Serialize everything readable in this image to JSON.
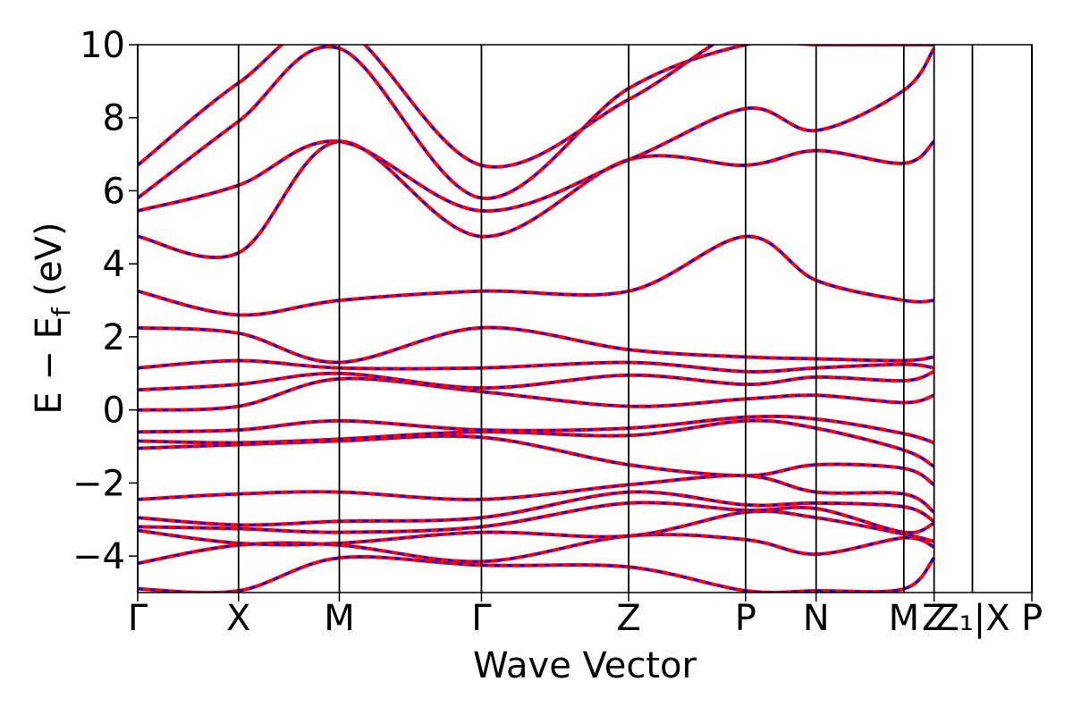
{
  "chart_data": {
    "type": "line",
    "xlabel": "Wave Vector",
    "ylabel_main": "E − E",
    "ylabel_sub": "f",
    "ylabel_unit": " (eV)",
    "ylim": [
      -5,
      10
    ],
    "yticks": [
      {
        "value": -4,
        "label": "−4"
      },
      {
        "value": -2,
        "label": "−2"
      },
      {
        "value": 0,
        "label": "0"
      },
      {
        "value": 2,
        "label": "2"
      },
      {
        "value": 4,
        "label": "4"
      },
      {
        "value": 6,
        "label": "6"
      },
      {
        "value": 8,
        "label": "8"
      },
      {
        "value": 10,
        "label": "10"
      }
    ],
    "kpath_labels": [
      "Γ",
      "X",
      "M",
      "Γ",
      "Z",
      "P",
      "N",
      "Z",
      "M",
      "X",
      "P"
    ],
    "kpath_positions": [
      0,
      1,
      2,
      3.41,
      4.87,
      6.03,
      6.73,
      7.6,
      7.9,
      8.87,
      8.87
    ],
    "xlim": [
      0,
      8.87
    ],
    "overlap_labels": [
      {
        "text": "Z₁|X",
        "at": 8.28
      },
      {
        "text": "M",
        "at": 7.6
      }
    ],
    "series_colors": {
      "solid": "#ff0000",
      "dashed": "#0000ff"
    },
    "bands": [
      {
        "x": [
          0,
          1,
          2,
          3.41,
          4.87,
          6.03,
          6.73,
          7.6,
          7.9
        ],
        "y": [
          -4.9,
          -4.95,
          -4.05,
          -4.25,
          -4.3,
          -4.95,
          -4.95,
          -4.9,
          -4.05
        ]
      },
      {
        "x": [
          0,
          1,
          2,
          3.41,
          4.87,
          6.03,
          6.73,
          7.6,
          7.9
        ],
        "y": [
          -4.2,
          -3.7,
          -3.7,
          -4.15,
          -3.45,
          -3.55,
          -3.95,
          -3.5,
          -3.75
        ]
      },
      {
        "x": [
          0,
          1,
          2,
          3.41,
          4.87,
          6.03,
          6.73,
          7.6,
          7.9
        ],
        "y": [
          -3.3,
          -3.65,
          -3.65,
          -3.35,
          -3.45,
          -2.8,
          -2.95,
          -3.4,
          -3.6
        ]
      },
      {
        "x": [
          0,
          1,
          2,
          3.41,
          4.87,
          6.03,
          6.73,
          7.6,
          7.9
        ],
        "y": [
          -3.2,
          -3.25,
          -3.35,
          -3.2,
          -2.55,
          -2.75,
          -2.7,
          -3.35,
          -3.1
        ]
      },
      {
        "x": [
          0,
          1,
          2,
          3.41,
          4.87,
          6.03,
          6.73,
          7.6,
          7.9
        ],
        "y": [
          -2.95,
          -3.15,
          -3.05,
          -2.95,
          -2.25,
          -2.6,
          -2.55,
          -2.65,
          -3.05
        ]
      },
      {
        "x": [
          0,
          1,
          2,
          3.41,
          4.87,
          6.03,
          6.73,
          7.6,
          7.9
        ],
        "y": [
          -2.45,
          -2.3,
          -2.25,
          -2.45,
          -2.05,
          -1.8,
          -2.25,
          -2.3,
          -2.8
        ]
      },
      {
        "x": [
          0,
          1,
          2,
          3.41,
          4.87,
          6.03,
          6.73,
          7.6,
          7.9
        ],
        "y": [
          -1.05,
          -0.95,
          -0.85,
          -0.75,
          -1.5,
          -1.8,
          -1.5,
          -1.6,
          -2.05
        ]
      },
      {
        "x": [
          0,
          1,
          2,
          3.41,
          4.87,
          6.03,
          6.73,
          7.6,
          7.9
        ],
        "y": [
          -0.85,
          -0.9,
          -0.8,
          -0.6,
          -0.7,
          -0.3,
          -0.5,
          -1.1,
          -1.55
        ]
      },
      {
        "x": [
          0,
          1,
          2,
          3.41,
          4.87,
          6.03,
          6.73,
          7.6,
          7.9
        ],
        "y": [
          -0.6,
          -0.55,
          -0.3,
          -0.55,
          -0.5,
          -0.2,
          -0.25,
          -0.65,
          -0.9
        ]
      },
      {
        "x": [
          0,
          1,
          2,
          3.41,
          4.87,
          6.03,
          6.73,
          7.6,
          7.9
        ],
        "y": [
          0.0,
          0.1,
          0.85,
          0.5,
          0.1,
          0.3,
          0.4,
          0.2,
          0.4
        ]
      },
      {
        "x": [
          0,
          1,
          2,
          3.41,
          4.87,
          6.03,
          6.73,
          7.6,
          7.9
        ],
        "y": [
          0.55,
          0.7,
          1.0,
          0.6,
          0.95,
          0.7,
          0.9,
          0.8,
          1.05
        ]
      },
      {
        "x": [
          0,
          1,
          2,
          3.41,
          4.87,
          6.03,
          6.73,
          7.6,
          7.9
        ],
        "y": [
          1.15,
          1.35,
          1.15,
          1.15,
          1.3,
          1.05,
          1.15,
          1.25,
          1.15
        ]
      },
      {
        "x": [
          0,
          1,
          2,
          3.41,
          4.87,
          6.03,
          6.73,
          7.6,
          7.9
        ],
        "y": [
          2.25,
          2.1,
          1.3,
          2.25,
          1.65,
          1.45,
          1.4,
          1.35,
          1.45
        ]
      },
      {
        "x": [
          0,
          1,
          2,
          3.41,
          4.87,
          6.03,
          6.73,
          7.6,
          7.9
        ],
        "y": [
          3.25,
          2.6,
          3.0,
          3.25,
          3.25,
          4.75,
          3.55,
          3.0,
          3.0
        ]
      },
      {
        "x": [
          0,
          1,
          2,
          3.41,
          4.87,
          6.03,
          6.73,
          7.6,
          7.9
        ],
        "y": [
          4.75,
          4.3,
          7.35,
          4.75,
          6.85,
          6.7,
          7.1,
          6.75,
          7.35
        ]
      },
      {
        "x": [
          0,
          1,
          2,
          3.41,
          4.87,
          6.03,
          6.73,
          7.6,
          7.9
        ],
        "y": [
          5.45,
          6.15,
          7.35,
          5.45,
          6.85,
          8.25,
          7.65,
          8.75,
          9.9
        ]
      },
      {
        "x": [
          0,
          1,
          2,
          3.41,
          4.87,
          6.03,
          6.73,
          7.6,
          7.9
        ],
        "y": [
          5.8,
          7.9,
          9.9,
          5.8,
          8.8,
          10.0,
          10.0,
          10.0,
          10.0
        ]
      },
      {
        "x": [
          0,
          1,
          2,
          3.41,
          4.87,
          6.03,
          6.73,
          7.6,
          7.9
        ],
        "y": [
          6.7,
          8.95,
          10.5,
          6.7,
          8.5,
          10.5,
          10.5,
          10.5,
          10.5
        ]
      }
    ]
  }
}
